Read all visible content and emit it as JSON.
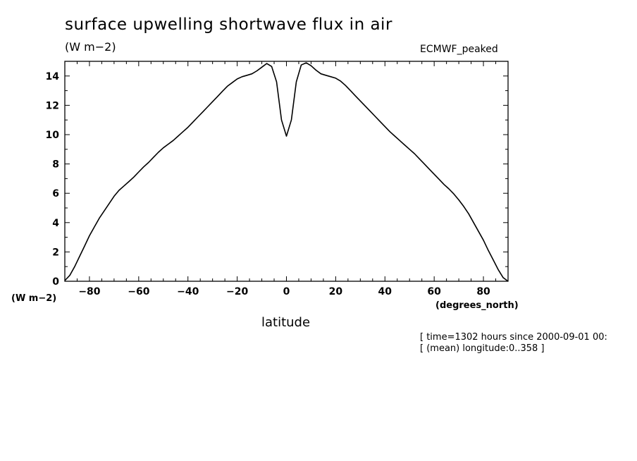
{
  "title": "surface upwelling shortwave flux in air",
  "units_top": "(W m−2)",
  "model_label": "ECMWF_peaked",
  "units_left": "(W m−2)",
  "x_units": "(degrees_north)",
  "notes": {
    "line1": "[ time=1302 hours since 2000-09-01 00:",
    "line2": "[ (mean) longitude:0..358 ]"
  },
  "chart_data": {
    "type": "line",
    "title": "surface upwelling shortwave flux in air",
    "xlabel": "latitude",
    "ylabel": "(W m−2)",
    "xlim": [
      -90,
      90
    ],
    "ylim": [
      0,
      15
    ],
    "xticks": [
      -80,
      -60,
      -40,
      -20,
      0,
      20,
      40,
      60,
      80
    ],
    "yticks": [
      0,
      2,
      4,
      6,
      8,
      10,
      12,
      14
    ],
    "grid": false,
    "series": [
      {
        "x": [
          -90,
          -88,
          -86,
          -84,
          -82,
          -80,
          -78,
          -76,
          -74,
          -72,
          -70,
          -68,
          -66,
          -64,
          -62,
          -60,
          -58,
          -56,
          -54,
          -52,
          -50,
          -48,
          -46,
          -44,
          -42,
          -40,
          -38,
          -36,
          -34,
          -32,
          -30,
          -28,
          -26,
          -24,
          -22,
          -20,
          -18,
          -16,
          -14,
          -12,
          -10,
          -8,
          -6,
          -4,
          -2,
          0,
          2,
          4,
          6,
          8,
          10,
          12,
          14,
          16,
          18,
          20,
          22,
          24,
          26,
          28,
          30,
          32,
          34,
          36,
          38,
          40,
          42,
          44,
          46,
          48,
          50,
          52,
          54,
          56,
          58,
          60,
          62,
          64,
          66,
          68,
          70,
          72,
          74,
          76,
          78,
          80,
          82,
          84,
          86,
          88,
          90
        ],
        "y": [
          0.05,
          0.4,
          1.0,
          1.7,
          2.4,
          3.1,
          3.7,
          4.3,
          4.8,
          5.3,
          5.8,
          6.2,
          6.5,
          6.8,
          7.1,
          7.45,
          7.8,
          8.1,
          8.45,
          8.8,
          9.1,
          9.35,
          9.6,
          9.9,
          10.2,
          10.5,
          10.85,
          11.2,
          11.55,
          11.9,
          12.25,
          12.6,
          12.95,
          13.3,
          13.55,
          13.8,
          13.95,
          14.05,
          14.15,
          14.35,
          14.6,
          14.85,
          14.65,
          13.6,
          11.0,
          9.9,
          11.0,
          13.6,
          14.75,
          14.9,
          14.7,
          14.4,
          14.15,
          14.05,
          13.95,
          13.85,
          13.65,
          13.35,
          13.0,
          12.65,
          12.3,
          11.95,
          11.6,
          11.25,
          10.9,
          10.55,
          10.2,
          9.9,
          9.6,
          9.3,
          9.0,
          8.7,
          8.35,
          8.0,
          7.65,
          7.3,
          6.95,
          6.6,
          6.3,
          5.95,
          5.55,
          5.1,
          4.6,
          4.0,
          3.4,
          2.8,
          2.1,
          1.45,
          0.8,
          0.25,
          0.0
        ]
      }
    ]
  }
}
